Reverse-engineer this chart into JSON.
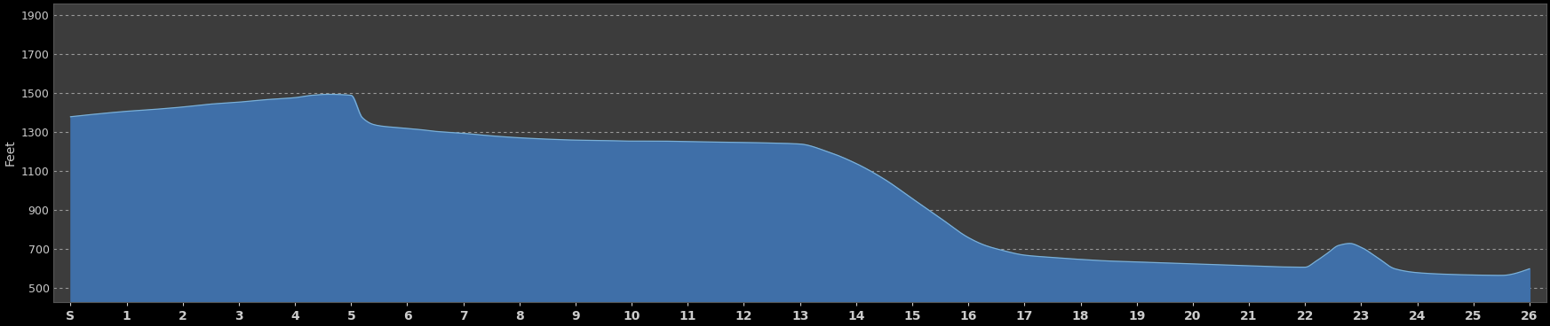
{
  "background_color": "#000000",
  "plot_bg_color": "#3c3c3c",
  "fill_color": "#3f6fa8",
  "line_color": "#7ab0d8",
  "grid_color": "#999999",
  "text_color": "#cccccc",
  "ylabel": "Feet",
  "yticks": [
    500,
    700,
    900,
    1100,
    1300,
    1500,
    1700,
    1900
  ],
  "ylim": [
    430,
    1960
  ],
  "xtick_labels": [
    "S",
    "1",
    "2",
    "3",
    "4",
    "5",
    "6",
    "7",
    "8",
    "9",
    "10",
    "11",
    "12",
    "13",
    "14",
    "15",
    "16",
    "17",
    "18",
    "19",
    "20",
    "21",
    "22",
    "23",
    "24",
    "25",
    "26"
  ],
  "mile_positions": [
    0,
    1,
    2,
    3,
    4,
    5,
    6,
    7,
    8,
    9,
    10,
    11,
    12,
    13,
    14,
    15,
    16,
    17,
    18,
    19,
    20,
    21,
    22,
    23,
    24,
    25,
    26
  ],
  "key_miles": [
    0,
    0.5,
    1,
    1.5,
    2,
    2.5,
    3,
    3.5,
    4,
    4.3,
    4.6,
    5.0,
    5.2,
    5.4,
    5.6,
    5.8,
    6.0,
    6.2,
    6.5,
    7,
    7.5,
    8,
    8.5,
    9,
    9.5,
    10,
    10.5,
    11,
    11.5,
    12,
    12.5,
    13,
    13.5,
    14,
    14.5,
    15,
    15.5,
    16,
    16.3,
    16.6,
    17,
    17.5,
    18,
    18.5,
    19,
    19.5,
    20,
    20.5,
    21,
    21.5,
    22.0,
    22.2,
    22.4,
    22.6,
    22.8,
    23.0,
    23.3,
    23.6,
    24,
    24.5,
    25,
    25.5,
    26
  ],
  "key_elevations": [
    1380,
    1395,
    1408,
    1418,
    1430,
    1445,
    1455,
    1468,
    1478,
    1490,
    1495,
    1490,
    1375,
    1340,
    1330,
    1325,
    1320,
    1315,
    1305,
    1295,
    1282,
    1272,
    1265,
    1260,
    1258,
    1255,
    1255,
    1252,
    1250,
    1248,
    1245,
    1240,
    1200,
    1140,
    1060,
    960,
    860,
    760,
    720,
    695,
    670,
    658,
    648,
    640,
    635,
    630,
    625,
    620,
    615,
    610,
    608,
    640,
    680,
    720,
    730,
    710,
    655,
    600,
    580,
    572,
    568,
    566,
    600
  ]
}
